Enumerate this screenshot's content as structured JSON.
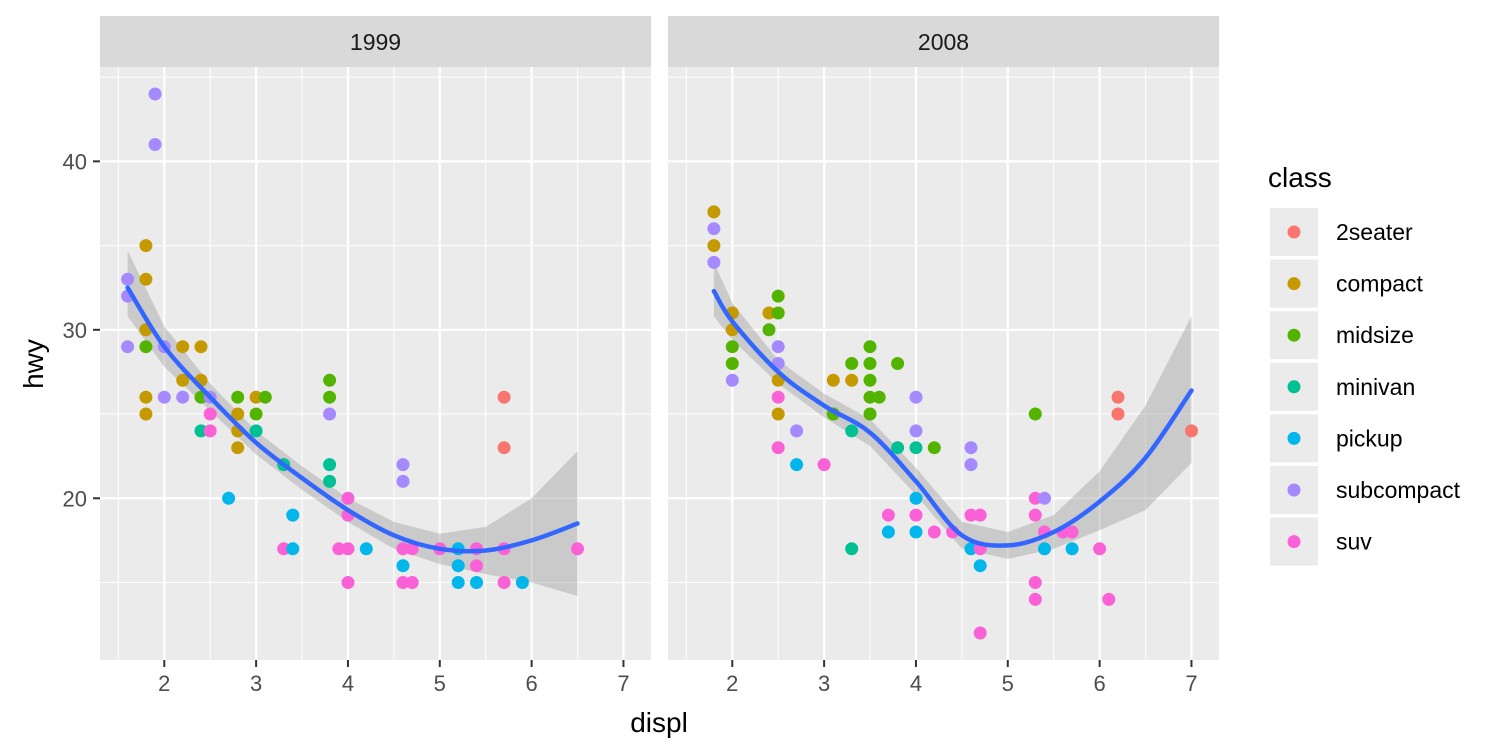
{
  "chart_data": {
    "type": "scatter",
    "xlabel": "displ",
    "ylabel": "hwy",
    "xlim": [
      1.3,
      7.3
    ],
    "ylim": [
      10.4,
      45.6
    ],
    "x_ticks": [
      2,
      3,
      4,
      5,
      6,
      7
    ],
    "y_ticks": [
      20,
      30,
      40
    ],
    "grid": true,
    "legend": {
      "title": "class",
      "position": "right",
      "entries": [
        {
          "label": "2seater",
          "color": "#F8766D"
        },
        {
          "label": "compact",
          "color": "#C49A00"
        },
        {
          "label": "midsize",
          "color": "#53B400"
        },
        {
          "label": "minivan",
          "color": "#00C094"
        },
        {
          "label": "pickup",
          "color": "#00B6EB"
        },
        {
          "label": "subcompact",
          "color": "#A58AFF"
        },
        {
          "label": "suv",
          "color": "#FB61D7"
        }
      ]
    },
    "panels": [
      {
        "title": "1999",
        "points": [
          [
            1.6,
            33,
            "subcompact"
          ],
          [
            1.6,
            32,
            "subcompact"
          ],
          [
            1.6,
            29,
            "subcompact"
          ],
          [
            1.8,
            35,
            "compact"
          ],
          [
            1.8,
            33,
            "compact"
          ],
          [
            1.8,
            30,
            "compact"
          ],
          [
            1.8,
            29,
            "midsize"
          ],
          [
            1.8,
            26,
            "compact"
          ],
          [
            1.8,
            25,
            "compact"
          ],
          [
            1.9,
            44,
            "subcompact"
          ],
          [
            1.9,
            41,
            "subcompact"
          ],
          [
            2.0,
            29,
            "subcompact"
          ],
          [
            2.0,
            26,
            "subcompact"
          ],
          [
            2.2,
            29,
            "compact"
          ],
          [
            2.2,
            27,
            "compact"
          ],
          [
            2.2,
            26,
            "subcompact"
          ],
          [
            2.4,
            29,
            "compact"
          ],
          [
            2.4,
            27,
            "compact"
          ],
          [
            2.4,
            26,
            "midsize"
          ],
          [
            2.4,
            24,
            "minivan"
          ],
          [
            2.5,
            26,
            "subcompact"
          ],
          [
            2.5,
            25,
            "suv"
          ],
          [
            2.5,
            24,
            "suv"
          ],
          [
            2.7,
            20,
            "pickup"
          ],
          [
            2.8,
            26,
            "midsize"
          ],
          [
            2.8,
            25,
            "compact"
          ],
          [
            2.8,
            24,
            "compact"
          ],
          [
            2.8,
            23,
            "compact"
          ],
          [
            3.0,
            26,
            "compact"
          ],
          [
            3.0,
            25,
            "midsize"
          ],
          [
            3.0,
            24,
            "minivan"
          ],
          [
            3.1,
            26,
            "midsize"
          ],
          [
            3.3,
            22,
            "minivan"
          ],
          [
            3.3,
            17,
            "suv"
          ],
          [
            3.4,
            19,
            "pickup"
          ],
          [
            3.4,
            17,
            "pickup"
          ],
          [
            3.8,
            27,
            "midsize"
          ],
          [
            3.8,
            26,
            "midsize"
          ],
          [
            3.8,
            25,
            "subcompact"
          ],
          [
            3.8,
            22,
            "minivan"
          ],
          [
            3.8,
            21,
            "minivan"
          ],
          [
            3.9,
            17,
            "suv"
          ],
          [
            4.0,
            20,
            "suv"
          ],
          [
            4.0,
            19,
            "suv"
          ],
          [
            4.0,
            17,
            "suv"
          ],
          [
            4.0,
            15,
            "suv"
          ],
          [
            4.2,
            17,
            "pickup"
          ],
          [
            4.6,
            22,
            "subcompact"
          ],
          [
            4.6,
            21,
            "subcompact"
          ],
          [
            4.6,
            17,
            "suv"
          ],
          [
            4.6,
            16,
            "pickup"
          ],
          [
            4.6,
            15,
            "suv"
          ],
          [
            4.7,
            17,
            "suv"
          ],
          [
            4.7,
            15,
            "suv"
          ],
          [
            5.0,
            17,
            "suv"
          ],
          [
            5.2,
            17,
            "pickup"
          ],
          [
            5.2,
            16,
            "pickup"
          ],
          [
            5.2,
            15,
            "pickup"
          ],
          [
            5.4,
            17,
            "suv"
          ],
          [
            5.4,
            16,
            "suv"
          ],
          [
            5.4,
            15,
            "pickup"
          ],
          [
            5.7,
            26,
            "2seater"
          ],
          [
            5.7,
            23,
            "2seater"
          ],
          [
            5.7,
            17,
            "suv"
          ],
          [
            5.7,
            15,
            "suv"
          ],
          [
            5.9,
            15,
            "pickup"
          ],
          [
            6.5,
            17,
            "suv"
          ]
        ],
        "smooth": {
          "x": [
            1.6,
            2.0,
            2.5,
            3.0,
            3.5,
            4.0,
            4.5,
            5.0,
            5.5,
            6.0,
            6.5
          ],
          "y": [
            32.5,
            29.0,
            26.0,
            23.3,
            21.2,
            19.3,
            17.8,
            17.0,
            16.9,
            17.5,
            18.5
          ],
          "lower": [
            30.8,
            27.8,
            25.2,
            22.6,
            20.5,
            18.6,
            17.0,
            16.1,
            15.5,
            15.0,
            14.2
          ],
          "upper": [
            34.7,
            30.2,
            26.8,
            24.0,
            21.9,
            20.0,
            18.6,
            17.9,
            18.3,
            20.0,
            22.8
          ]
        }
      },
      {
        "title": "2008",
        "points": [
          [
            1.8,
            37,
            "compact"
          ],
          [
            1.8,
            36,
            "subcompact"
          ],
          [
            1.8,
            35,
            "compact"
          ],
          [
            1.8,
            34,
            "subcompact"
          ],
          [
            2.0,
            31,
            "compact"
          ],
          [
            2.0,
            30,
            "compact"
          ],
          [
            2.0,
            29,
            "midsize"
          ],
          [
            2.0,
            28,
            "midsize"
          ],
          [
            2.0,
            27,
            "subcompact"
          ],
          [
            2.4,
            31,
            "compact"
          ],
          [
            2.4,
            30,
            "midsize"
          ],
          [
            2.5,
            32,
            "midsize"
          ],
          [
            2.5,
            31,
            "midsize"
          ],
          [
            2.5,
            29,
            "subcompact"
          ],
          [
            2.5,
            28,
            "subcompact"
          ],
          [
            2.5,
            27,
            "compact"
          ],
          [
            2.5,
            26,
            "suv"
          ],
          [
            2.5,
            25,
            "compact"
          ],
          [
            2.5,
            23,
            "suv"
          ],
          [
            2.7,
            24,
            "subcompact"
          ],
          [
            2.7,
            22,
            "pickup"
          ],
          [
            3.0,
            22,
            "suv"
          ],
          [
            3.1,
            27,
            "compact"
          ],
          [
            3.1,
            25,
            "midsize"
          ],
          [
            3.3,
            28,
            "midsize"
          ],
          [
            3.3,
            27,
            "compact"
          ],
          [
            3.3,
            24,
            "minivan"
          ],
          [
            3.3,
            17,
            "minivan"
          ],
          [
            3.5,
            29,
            "midsize"
          ],
          [
            3.5,
            28,
            "midsize"
          ],
          [
            3.5,
            27,
            "midsize"
          ],
          [
            3.5,
            26,
            "midsize"
          ],
          [
            3.5,
            25,
            "midsize"
          ],
          [
            3.6,
            26,
            "midsize"
          ],
          [
            3.7,
            19,
            "suv"
          ],
          [
            3.7,
            18,
            "pickup"
          ],
          [
            3.8,
            28,
            "midsize"
          ],
          [
            3.8,
            23,
            "minivan"
          ],
          [
            4.0,
            26,
            "subcompact"
          ],
          [
            4.0,
            24,
            "subcompact"
          ],
          [
            4.0,
            23,
            "minivan"
          ],
          [
            4.0,
            20,
            "pickup"
          ],
          [
            4.0,
            19,
            "suv"
          ],
          [
            4.0,
            18,
            "pickup"
          ],
          [
            4.2,
            23,
            "midsize"
          ],
          [
            4.2,
            18,
            "suv"
          ],
          [
            4.4,
            18,
            "suv"
          ],
          [
            4.6,
            23,
            "subcompact"
          ],
          [
            4.6,
            22,
            "subcompact"
          ],
          [
            4.6,
            19,
            "suv"
          ],
          [
            4.6,
            17,
            "pickup"
          ],
          [
            4.7,
            19,
            "suv"
          ],
          [
            4.7,
            17,
            "suv"
          ],
          [
            4.7,
            16,
            "pickup"
          ],
          [
            4.7,
            12,
            "suv"
          ],
          [
            5.3,
            25,
            "midsize"
          ],
          [
            5.3,
            20,
            "suv"
          ],
          [
            5.3,
            19,
            "suv"
          ],
          [
            5.3,
            15,
            "suv"
          ],
          [
            5.3,
            14,
            "suv"
          ],
          [
            5.4,
            20,
            "subcompact"
          ],
          [
            5.4,
            18,
            "suv"
          ],
          [
            5.4,
            17,
            "pickup"
          ],
          [
            5.6,
            18,
            "suv"
          ],
          [
            5.7,
            18,
            "suv"
          ],
          [
            5.7,
            17,
            "pickup"
          ],
          [
            6.0,
            17,
            "suv"
          ],
          [
            6.1,
            14,
            "suv"
          ],
          [
            6.2,
            26,
            "2seater"
          ],
          [
            6.2,
            25,
            "2seater"
          ],
          [
            7.0,
            24,
            "2seater"
          ]
        ],
        "smooth": {
          "x": [
            1.8,
            2.0,
            2.5,
            3.0,
            3.5,
            4.0,
            4.5,
            5.0,
            5.5,
            6.0,
            6.5,
            7.0
          ],
          "y": [
            32.3,
            30.5,
            27.5,
            25.5,
            23.9,
            21.0,
            17.8,
            17.2,
            18.0,
            19.8,
            22.4,
            26.4
          ],
          "lower": [
            30.8,
            29.4,
            26.8,
            24.8,
            23.1,
            20.2,
            17.0,
            16.4,
            17.0,
            18.1,
            19.3,
            22.1
          ],
          "upper": [
            34.0,
            31.6,
            28.2,
            26.2,
            24.7,
            21.8,
            18.6,
            18.0,
            19.0,
            21.6,
            25.5,
            30.8
          ]
        }
      }
    ]
  }
}
